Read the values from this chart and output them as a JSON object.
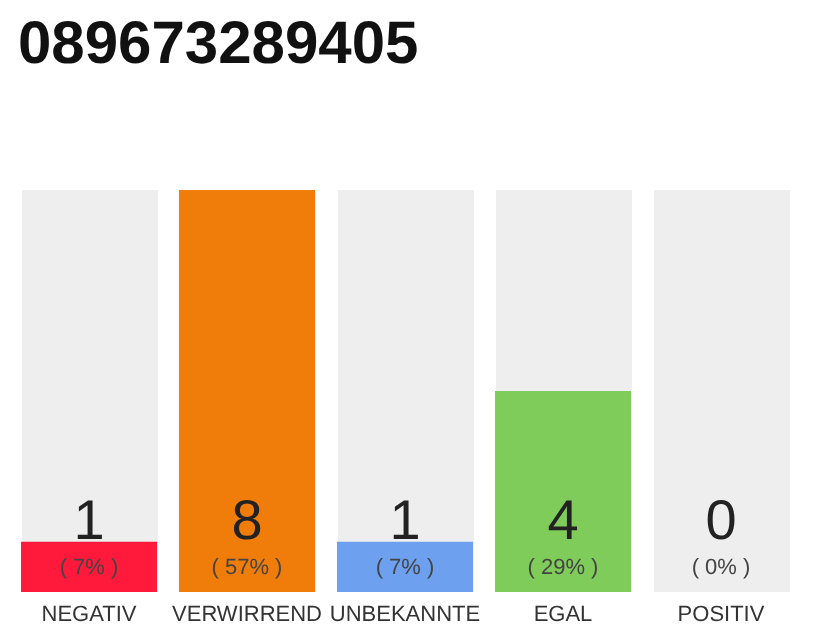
{
  "chart_data": {
    "type": "bar",
    "title": "089673289405",
    "categories": [
      "NEGATIV",
      "VERWIRREND",
      "UNBEKANNTE",
      "EGAL",
      "POSITIV"
    ],
    "values": [
      1,
      8,
      1,
      4,
      0
    ],
    "colors": [
      "#ff1a3c",
      "#f07d0a",
      "#6ea0f0",
      "#80cc5a",
      "#c8c8c8"
    ],
    "data_labels": true,
    "annotations": [
      "( 7% )",
      "( 57% )",
      "( 7% )",
      "( 29% )",
      "( 0% )"
    ]
  }
}
